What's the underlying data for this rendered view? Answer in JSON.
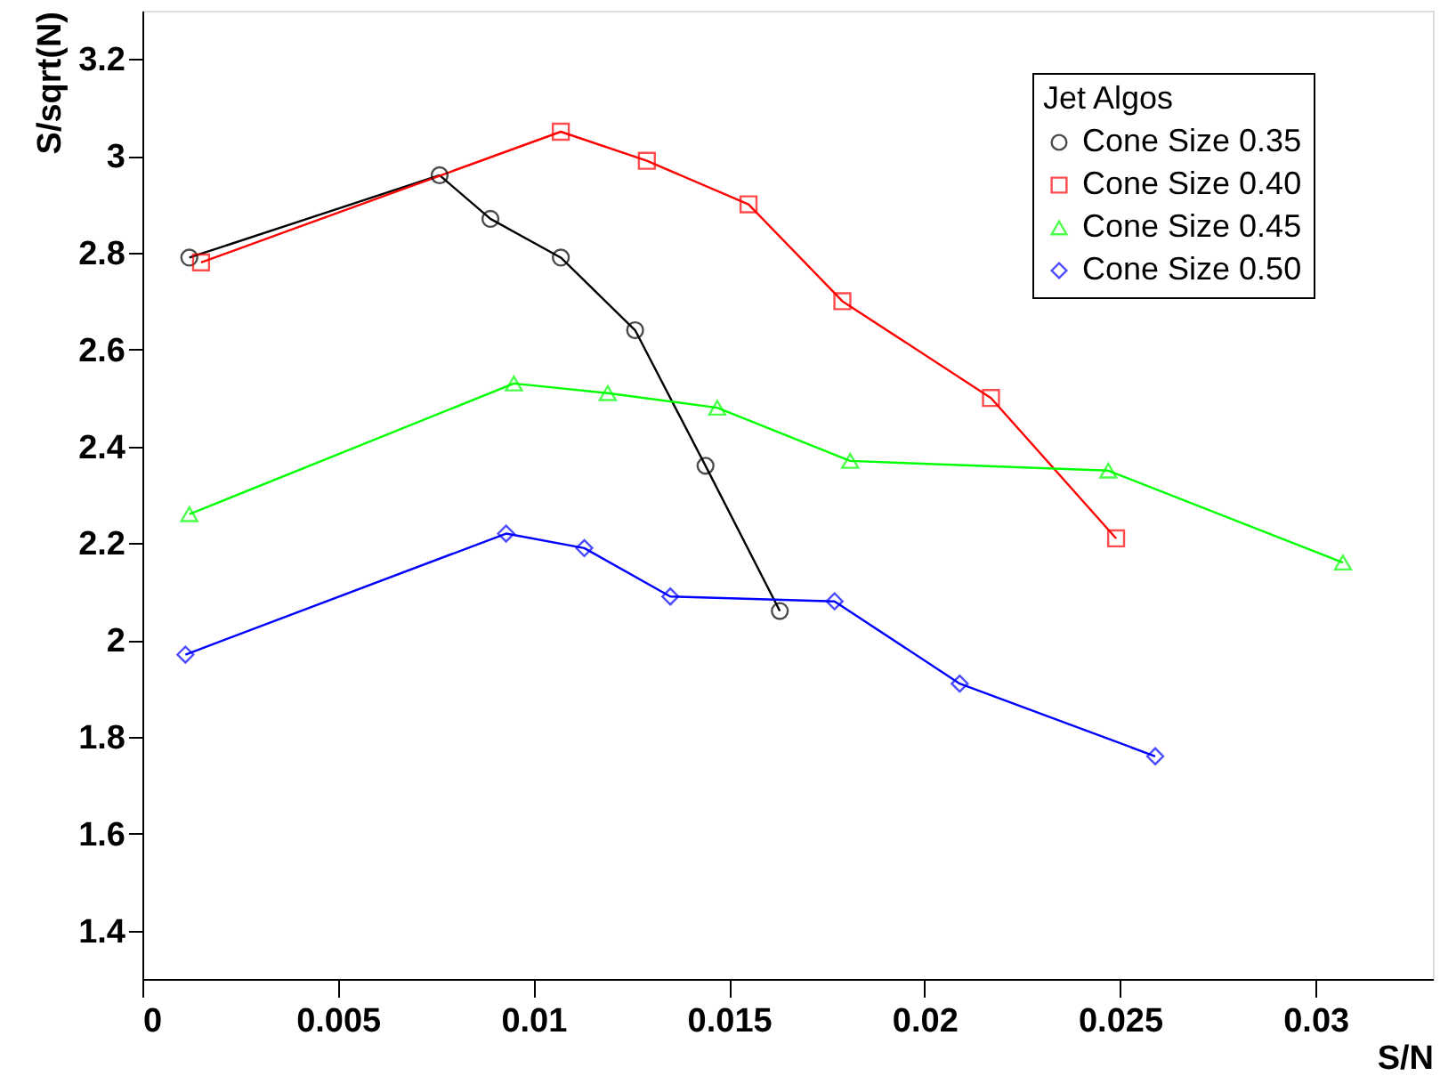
{
  "chart_data": {
    "type": "line",
    "xlabel": "S/N",
    "ylabel": "S/sqrt(N)",
    "legend_title": "Jet Algos",
    "legend": "top right",
    "grid": false,
    "line_style": "solid",
    "xlim": [
      0,
      0.033
    ],
    "xticks": [
      0,
      0.005,
      0.01,
      0.015,
      0.02,
      0.025,
      0.03
    ],
    "ylim": [
      1.3,
      3.3
    ],
    "yticks": [
      1.4,
      1.6,
      1.8,
      2,
      2.2,
      2.4,
      2.6,
      2.8,
      3,
      3.2
    ],
    "series": [
      {
        "name": "Cone Size 0.35",
        "color": "#000000",
        "marker": "circle",
        "x": [
          0.0012,
          0.0076,
          0.0089,
          0.0107,
          0.0126,
          0.0144,
          0.0163
        ],
        "values": [
          2.79,
          2.96,
          2.87,
          2.79,
          2.64,
          2.36,
          2.06
        ]
      },
      {
        "name": "Cone Size 0.40",
        "color": "#ff0000",
        "marker": "square",
        "x": [
          0.0015,
          0.0107,
          0.0129,
          0.0155,
          0.0179,
          0.0217,
          0.0249
        ],
        "values": [
          2.78,
          3.05,
          2.99,
          2.9,
          2.7,
          2.5,
          2.21
        ]
      },
      {
        "name": "Cone Size 0.45",
        "color": "#00ff00",
        "marker": "triangle",
        "x": [
          0.0012,
          0.0095,
          0.0119,
          0.0147,
          0.0181,
          0.0247,
          0.0307
        ],
        "values": [
          2.26,
          2.53,
          2.51,
          2.48,
          2.37,
          2.35,
          2.16
        ]
      },
      {
        "name": "Cone Size 0.50",
        "color": "#0000ff",
        "marker": "diamond",
        "x": [
          0.0011,
          0.0093,
          0.0113,
          0.0135,
          0.0177,
          0.0209,
          0.0259
        ],
        "values": [
          1.97,
          2.22,
          2.19,
          2.09,
          2.08,
          1.91,
          1.76
        ]
      }
    ]
  }
}
